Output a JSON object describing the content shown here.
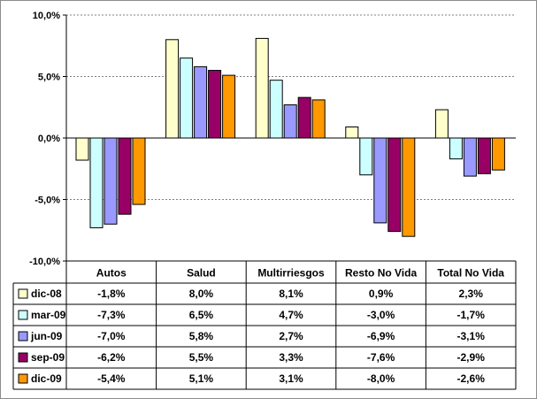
{
  "chart_data": {
    "type": "bar",
    "categories": [
      "Autos",
      "Salud",
      "Multirriesgos",
      "Resto No Vida",
      "Total No Vida"
    ],
    "series": [
      {
        "name": "dic-08",
        "values": [
          -1.8,
          8.0,
          8.1,
          0.9,
          2.3
        ],
        "color": "#ffffcc",
        "labels": [
          "-1,8%",
          "8,0%",
          "8,1%",
          "0,9%",
          "2,3%"
        ]
      },
      {
        "name": "mar-09",
        "values": [
          -7.3,
          6.5,
          4.7,
          -3.0,
          -1.7
        ],
        "color": "#ccffff",
        "labels": [
          "-7,3%",
          "6,5%",
          "4,7%",
          "-3,0%",
          "-1,7%"
        ]
      },
      {
        "name": "jun-09",
        "values": [
          -7.0,
          5.8,
          2.7,
          -6.9,
          -3.1
        ],
        "color": "#9999ff",
        "labels": [
          "-7,0%",
          "5,8%",
          "2,7%",
          "-6,9%",
          "-3,1%"
        ]
      },
      {
        "name": "sep-09",
        "values": [
          -6.2,
          5.5,
          3.3,
          -7.6,
          -2.9
        ],
        "color": "#990066",
        "labels": [
          "-6,2%",
          "5,5%",
          "3,3%",
          "-7,6%",
          "-2,9%"
        ]
      },
      {
        "name": "dic-09",
        "values": [
          -5.4,
          5.1,
          3.1,
          -8.0,
          -2.6
        ],
        "color": "#ff9900",
        "labels": [
          "-5,4%",
          "5,1%",
          "3,1%",
          "-8,0%",
          "-2,6%"
        ]
      }
    ],
    "yticks": [
      10,
      5,
      0,
      -5,
      -10
    ],
    "ytick_labels": [
      "10,0%",
      "5,0%",
      "0,0%",
      "-5,0%",
      "-10,0%"
    ],
    "ylim": [
      -10,
      10
    ],
    "grid": true,
    "legend": "data-table-left"
  }
}
